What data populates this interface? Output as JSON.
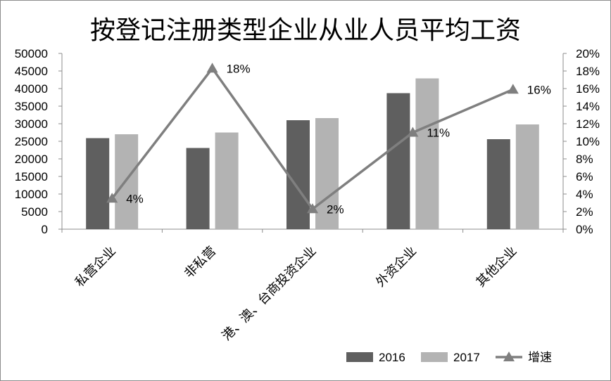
{
  "chart_data": {
    "type": "bar",
    "title": "按登记注册类型企业从业人员平均工资",
    "categories": [
      "私营企业",
      "非私营",
      "港、澳、台商投资企业",
      "外资企业",
      "其他企业"
    ],
    "series": [
      {
        "name": "2016",
        "type": "bar",
        "axis": "left",
        "color": "#5f5f5f",
        "values": [
          25900,
          23100,
          31000,
          38700,
          25600
        ]
      },
      {
        "name": "2017",
        "type": "bar",
        "axis": "left",
        "color": "#b3b3b3",
        "values": [
          27000,
          27500,
          31600,
          42900,
          29800
        ]
      },
      {
        "name": "增速",
        "type": "line",
        "axis": "right",
        "color": "#7f7f7f",
        "marker": "triangle",
        "values": [
          0.035,
          0.183,
          0.023,
          0.11,
          0.159
        ],
        "labels": [
          "4%",
          "18%",
          "2%",
          "11%",
          "16%"
        ]
      }
    ],
    "y_left": {
      "min": 0,
      "max": 50000,
      "ticks": [
        "0",
        "5000",
        "10000",
        "15000",
        "20000",
        "25000",
        "30000",
        "35000",
        "40000",
        "45000",
        "50000"
      ]
    },
    "y_right": {
      "min": 0,
      "max": 0.2,
      "ticks": [
        "0%",
        "2%",
        "4%",
        "6%",
        "8%",
        "10%",
        "12%",
        "14%",
        "16%",
        "18%",
        "20%"
      ]
    },
    "grid": false,
    "legend": {
      "position": "bottom-right",
      "entries": [
        "2016",
        "2017",
        "增速"
      ]
    }
  }
}
